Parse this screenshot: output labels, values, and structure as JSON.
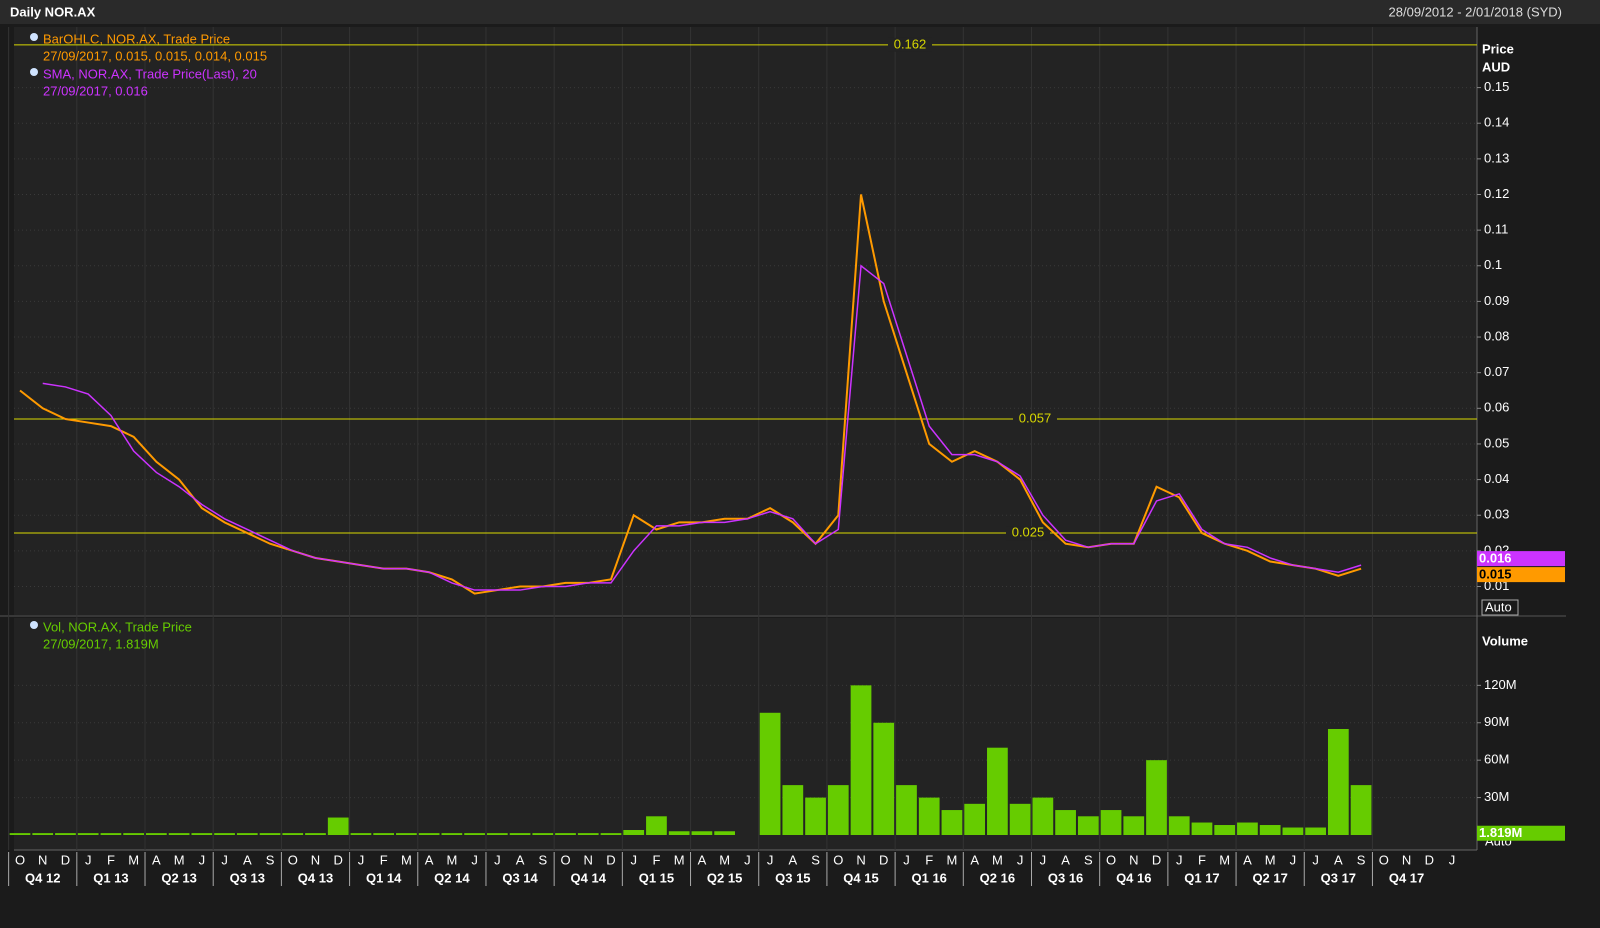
{
  "header": {
    "title": "Daily NOR.AX",
    "range": "28/09/2012 - 2/01/2018 (SYD)"
  },
  "chart_data": [
    {
      "type": "line",
      "y_axis_label": "Price",
      "y_axis_unit": "AUD",
      "scale_button": "Auto",
      "categories": [
        "O",
        "N",
        "D",
        "J",
        "F",
        "M",
        "A",
        "M",
        "J",
        "J",
        "A",
        "S",
        "O",
        "N",
        "D",
        "J",
        "F",
        "M",
        "A",
        "M",
        "J",
        "J",
        "A",
        "S",
        "O",
        "N",
        "D",
        "J",
        "F",
        "M",
        "A",
        "M",
        "J",
        "J",
        "A",
        "S",
        "O",
        "N",
        "D",
        "J",
        "F",
        "M",
        "A",
        "M",
        "J",
        "J",
        "A",
        "S",
        "O",
        "N",
        "D",
        "J",
        "F",
        "M",
        "A",
        "M",
        "J",
        "J",
        "A",
        "S",
        "O",
        "N",
        "D",
        "J"
      ],
      "quarters": [
        "Q4 12",
        "Q1 13",
        "Q2 13",
        "Q3 13",
        "Q4 13",
        "Q1 14",
        "Q2 14",
        "Q3 14",
        "Q4 14",
        "Q1 15",
        "Q2 15",
        "Q3 15",
        "Q4 15",
        "Q1 16",
        "Q2 16",
        "Q3 16",
        "Q4 16",
        "Q1 17",
        "Q2 17",
        "Q3 17",
        "Q4 17"
      ],
      "series": [
        {
          "name": "BarOHLC, NOR.AX, Trade Price",
          "legend_detail": "27/09/2017, 0.015, 0.015, 0.014, 0.015",
          "color": "#ff9a00",
          "last_value": 0.015,
          "values": [
            0.065,
            0.06,
            0.057,
            0.056,
            0.055,
            0.052,
            0.045,
            0.04,
            0.032,
            0.028,
            0.025,
            0.022,
            0.02,
            0.018,
            0.017,
            0.016,
            0.015,
            0.015,
            0.014,
            0.012,
            0.008,
            0.009,
            0.01,
            0.01,
            0.011,
            0.011,
            0.012,
            0.03,
            0.026,
            0.028,
            0.028,
            0.029,
            0.029,
            0.032,
            0.028,
            0.022,
            0.03,
            0.12,
            0.09,
            0.07,
            0.05,
            0.045,
            0.048,
            0.045,
            0.04,
            0.028,
            0.022,
            0.021,
            0.022,
            0.022,
            0.038,
            0.035,
            0.025,
            0.022,
            0.02,
            0.017,
            0.016,
            0.015,
            0.013,
            0.015,
            null,
            null,
            null,
            null
          ]
        },
        {
          "name": "SMA, NOR.AX, Trade Price(Last),  20",
          "legend_detail": "27/09/2017, 0.016",
          "color": "#cc33ff",
          "last_value": 0.016,
          "values": [
            null,
            0.067,
            0.066,
            0.064,
            0.058,
            0.048,
            0.042,
            0.038,
            0.033,
            0.029,
            0.026,
            0.023,
            0.02,
            0.018,
            0.017,
            0.016,
            0.015,
            0.015,
            0.014,
            0.011,
            0.009,
            0.009,
            0.009,
            0.01,
            0.01,
            0.011,
            0.011,
            0.02,
            0.027,
            0.027,
            0.028,
            0.028,
            0.029,
            0.031,
            0.029,
            0.022,
            0.026,
            0.1,
            0.095,
            0.075,
            0.055,
            0.047,
            0.047,
            0.045,
            0.041,
            0.03,
            0.023,
            0.021,
            0.022,
            0.022,
            0.034,
            0.036,
            0.026,
            0.022,
            0.021,
            0.018,
            0.016,
            0.015,
            0.014,
            0.016,
            null,
            null,
            null,
            null
          ]
        }
      ],
      "hlines": [
        0.162,
        0.057,
        0.025
      ],
      "hline_color": "#d8d800",
      "ylim": [
        0.002,
        0.167
      ],
      "yticks": [
        0.01,
        0.02,
        0.03,
        0.04,
        0.05,
        0.06,
        0.07,
        0.08,
        0.09,
        0.1,
        0.11,
        0.12,
        0.13,
        0.14,
        0.15
      ],
      "grid": true
    },
    {
      "type": "bar",
      "y_axis_label": "Volume",
      "scale_button": "Auto",
      "series": [
        {
          "name": "Vol, NOR.AX, Trade Price",
          "legend_detail": "27/09/2017, 1.819M",
          "color": "#66cc00",
          "last_value": 1819000,
          "last_value_label": "1.819M",
          "values": [
            1500000,
            1500000,
            1500000,
            1500000,
            1500000,
            1500000,
            1500000,
            1500000,
            1500000,
            1500000,
            1500000,
            1500000,
            1500000,
            1500000,
            14000000,
            1500000,
            1500000,
            1500000,
            1500000,
            1500000,
            1500000,
            1500000,
            1500000,
            1500000,
            1500000,
            1500000,
            1500000,
            4000000,
            15000000,
            3000000,
            3000000,
            3000000,
            null,
            98000000,
            40000000,
            30000000,
            40000000,
            120000000,
            90000000,
            40000000,
            30000000,
            20000000,
            25000000,
            70000000,
            25000000,
            30000000,
            20000000,
            15000000,
            20000000,
            15000000,
            60000000,
            15000000,
            10000000,
            8000000,
            10000000,
            8000000,
            6000000,
            6000000,
            85000000,
            40000000,
            null,
            null,
            null,
            null
          ]
        }
      ],
      "ylim": [
        0,
        174000000
      ],
      "yticks": [
        {
          "value": 30000000,
          "label": "30M"
        },
        {
          "value": 60000000,
          "label": "60M"
        },
        {
          "value": 90000000,
          "label": "90M"
        },
        {
          "value": 120000000,
          "label": "120M"
        }
      ],
      "grid": true
    }
  ]
}
